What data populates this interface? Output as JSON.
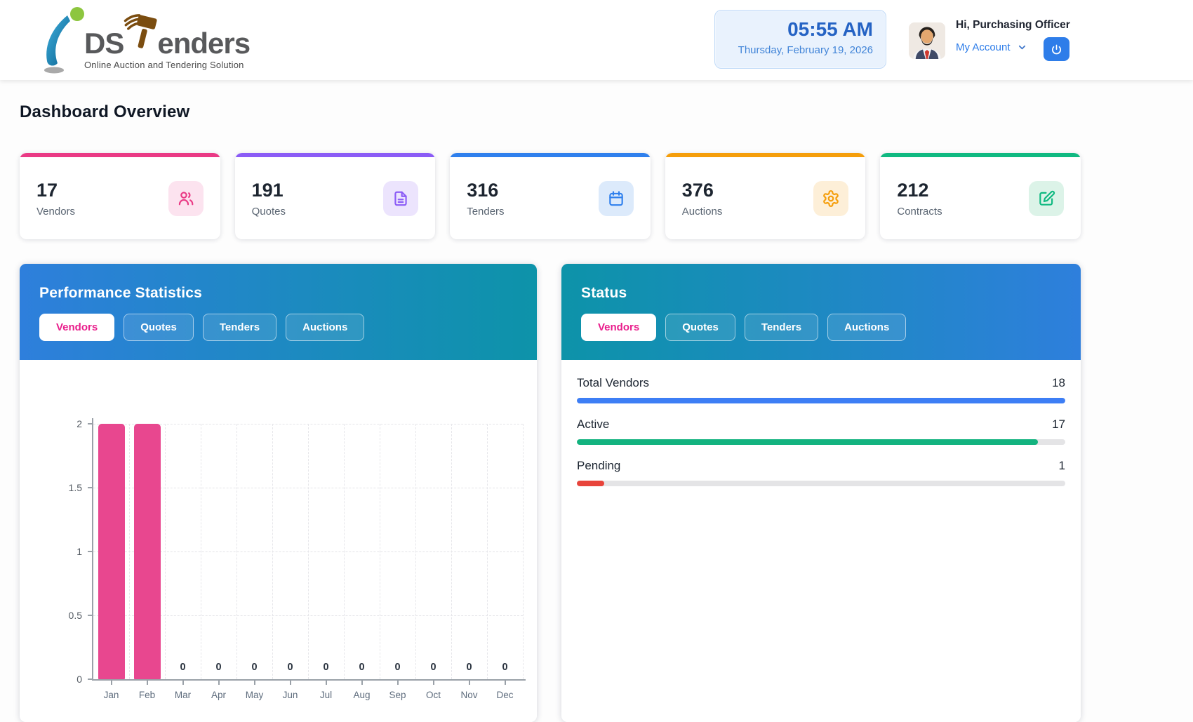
{
  "colors": {
    "accent_pink": "#e91e8c",
    "bar_pink": "#e8478f",
    "link_blue": "#2e7de9",
    "clock_blue": "#2563c4",
    "gradient_blue": "#2e7fdc",
    "gradient_teal": "#0d93a9"
  },
  "header": {
    "logo": {
      "text_ds": "DS",
      "text_enders": "enders",
      "tagline": "Online Auction and Tendering Solution"
    },
    "clock": {
      "time": "05:55 AM",
      "date": "Thursday, February 19, 2026"
    },
    "user": {
      "greeting": "Hi, Purchasing Officer",
      "account_label": "My Account"
    }
  },
  "page": {
    "title": "Dashboard Overview"
  },
  "stat_cards": [
    {
      "value": "17",
      "label": "Vendors",
      "icon": "users-icon",
      "accent": "#ea3a85",
      "icon_bg": "#fce3ef"
    },
    {
      "value": "191",
      "label": "Quotes",
      "icon": "document-icon",
      "accent": "#8b5cf6",
      "icon_bg": "#ece4fd"
    },
    {
      "value": "316",
      "label": "Tenders",
      "icon": "calendar-icon",
      "accent": "#2f80ed",
      "icon_bg": "#dceafb"
    },
    {
      "value": "376",
      "label": "Auctions",
      "icon": "gear-icon",
      "accent": "#f59e0b",
      "icon_bg": "#fdefd8"
    },
    {
      "value": "212",
      "label": "Contracts",
      "icon": "edit-icon",
      "accent": "#10b981",
      "icon_bg": "#dcf3e8"
    }
  ],
  "performance_panel": {
    "title": "Performance Statistics",
    "gradient": [
      "#2e7fdc",
      "#0d93a9"
    ],
    "tabs": [
      {
        "label": "Vendors",
        "active": true
      },
      {
        "label": "Quotes",
        "active": false
      },
      {
        "label": "Tenders",
        "active": false
      },
      {
        "label": "Auctions",
        "active": false
      }
    ]
  },
  "chart_data": {
    "type": "bar",
    "title": "Performance Statistics - Vendors",
    "categories": [
      "Jan",
      "Feb",
      "Mar",
      "Apr",
      "May",
      "Jun",
      "Jul",
      "Aug",
      "Sep",
      "Oct",
      "Nov",
      "Dec"
    ],
    "values": [
      2,
      2,
      0,
      0,
      0,
      0,
      0,
      0,
      0,
      0,
      0,
      0
    ],
    "y_ticks": [
      0,
      0.5,
      1,
      1.5,
      2
    ],
    "ylim": [
      0,
      2
    ],
    "xlabel": "",
    "ylabel": "",
    "bar_color": "#e8478f",
    "grid": "dashed",
    "legend": "none",
    "zero_value_labels": true
  },
  "status_panel": {
    "title": "Status",
    "gradient": [
      "#0d93a9",
      "#2e7fdc"
    ],
    "tabs": [
      {
        "label": "Vendors",
        "active": true
      },
      {
        "label": "Quotes",
        "active": false
      },
      {
        "label": "Tenders",
        "active": false
      },
      {
        "label": "Auctions",
        "active": false
      }
    ],
    "rows": [
      {
        "label": "Total Vendors",
        "value": 18,
        "max": 18,
        "color": "#3d7ef5"
      },
      {
        "label": "Active",
        "value": 17,
        "max": 18,
        "color": "#13b37f"
      },
      {
        "label": "Pending",
        "value": 1,
        "max": 18,
        "color": "#e8443b"
      }
    ]
  }
}
